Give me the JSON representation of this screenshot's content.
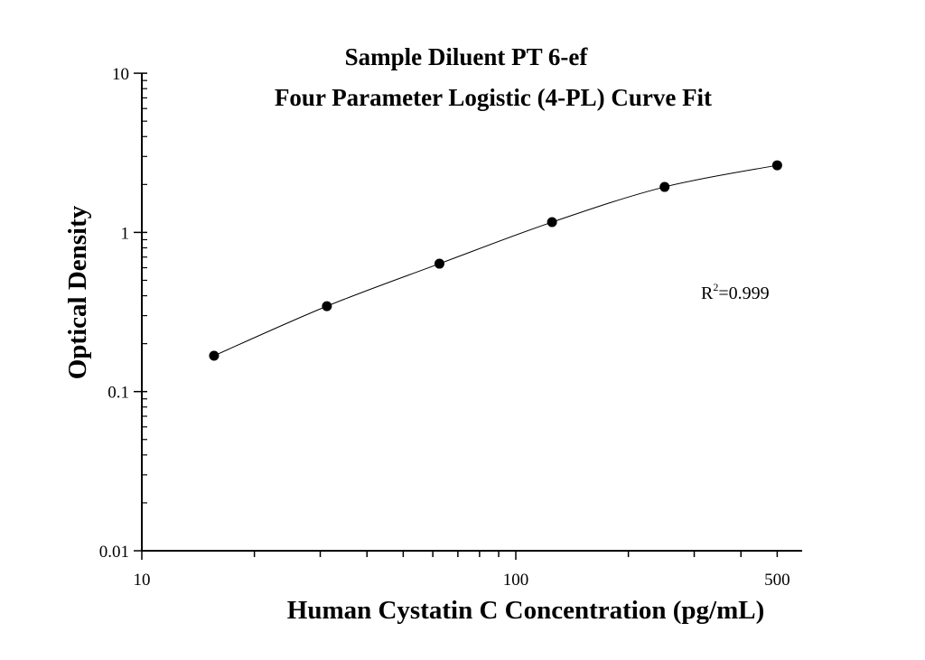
{
  "chart_data": {
    "type": "scatter",
    "title": "Sample Diluent PT 6-ef",
    "subtitle": "Four Parameter Logistic (4-PL) Curve Fit",
    "xlabel": "Human Cystatin C Concentration (pg/mL)",
    "ylabel": "Optical Density",
    "xscale": "log",
    "yscale": "log",
    "xlim": [
      10,
      550
    ],
    "ylim": [
      0.01,
      10
    ],
    "x_ticks": [
      "10",
      "100",
      "500"
    ],
    "y_ticks": [
      "0.01",
      "0.1",
      "1",
      "10"
    ],
    "grid": false,
    "annotation": {
      "base": "R",
      "sup": "2",
      "rest": "=0.999"
    },
    "points": {
      "x": [
        15.6,
        31.25,
        62.5,
        125,
        250,
        500
      ],
      "y": [
        0.168,
        0.344,
        0.636,
        1.16,
        1.93,
        2.64
      ]
    },
    "fit": "4-PL",
    "colors": {
      "points": "#000000",
      "line": "#000000"
    }
  }
}
